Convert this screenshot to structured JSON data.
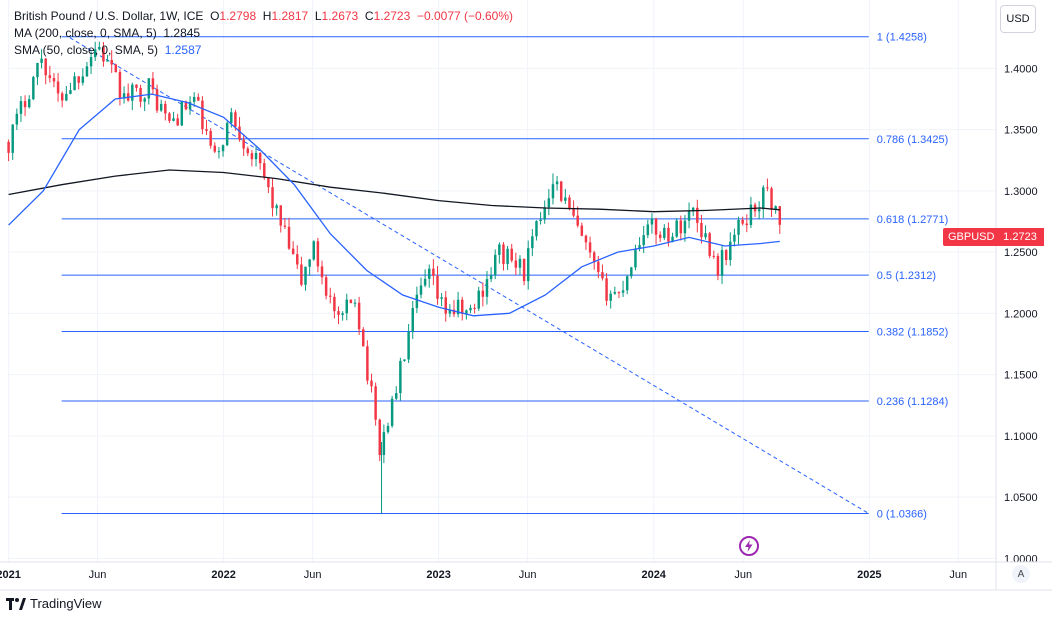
{
  "legend": {
    "title": "British Pound / U.S. Dollar, 1W, ICE",
    "o_label": "O",
    "o_value": "1.2798",
    "h_label": "H",
    "h_value": "1.2817",
    "l_label": "L",
    "l_value": "1.2673",
    "c_label": "C",
    "c_value": "1.2723",
    "change": "−0.0077 (−0.60%)",
    "ma200_label": "MA (200, close, 0, SMA, 5)",
    "ma200_value": "1.2845",
    "sma50_label": "SMA (50, close, 0, SMA, 5)",
    "sma50_value": "1.2587"
  },
  "currency_button": "USD",
  "symbol_tag": "GBPUSD",
  "last_price": "1.2723",
  "auto_scale_button": "A",
  "brand": "TradingView",
  "colors": {
    "up": "#089981",
    "down": "#f23645",
    "fib": "#2962ff",
    "ma200": "#131722",
    "sma50": "#2962ff",
    "grid": "#f0f3fa",
    "text": "#131722"
  },
  "chart_data": {
    "type": "candlestick",
    "instrument": "GBPUSD",
    "interval": "1W",
    "y_ticks": [
      "1.0000",
      "1.0500",
      "1.1000",
      "1.1500",
      "1.2000",
      "1.2500",
      "1.3000",
      "1.3500",
      "1.4000"
    ],
    "ylim": [
      0.997,
      1.4558
    ],
    "x_ticks": [
      {
        "label": "2021",
        "date": "2021-01-01"
      },
      {
        "label": "Jun",
        "date": "2021-06-01"
      },
      {
        "label": "2022",
        "date": "2022-01-01"
      },
      {
        "label": "Jun",
        "date": "2022-06-01"
      },
      {
        "label": "2023",
        "date": "2023-01-01"
      },
      {
        "label": "Jun",
        "date": "2023-06-01"
      },
      {
        "label": "2024",
        "date": "2024-01-01"
      },
      {
        "label": "Jun",
        "date": "2024-06-01"
      },
      {
        "label": "2025",
        "date": "2025-01-01"
      },
      {
        "label": "Jun",
        "date": "2025-06-01"
      }
    ],
    "xlim": [
      "2020-12-31",
      "2025-08-04"
    ],
    "fibonacci": {
      "start": "2021-04-01",
      "end": "2024-12-31",
      "levels": [
        {
          "label": "1 (1.4258)",
          "value": 1.4258
        },
        {
          "label": "0.786 (1.3425)",
          "value": 1.3425
        },
        {
          "label": "0.618 (1.2771)",
          "value": 1.2771
        },
        {
          "label": "0.5 (1.2312)",
          "value": 1.2312
        },
        {
          "label": "0.382 (1.1852)",
          "value": 1.1852
        },
        {
          "label": "0.236 (1.1284)",
          "value": 1.1284
        },
        {
          "label": "0 (1.0366)",
          "value": 1.0366
        }
      ]
    },
    "trendline": {
      "from": [
        "2021-04-15",
        1.425
      ],
      "to": [
        "2024-12-31",
        1.0366
      ],
      "style": "dashed"
    },
    "ma200": [
      [
        "2021-01-01",
        1.297
      ],
      [
        "2021-04-01",
        1.305
      ],
      [
        "2021-07-01",
        1.312
      ],
      [
        "2021-10-01",
        1.317
      ],
      [
        "2022-01-01",
        1.315
      ],
      [
        "2022-04-01",
        1.31
      ],
      [
        "2022-07-01",
        1.303
      ],
      [
        "2022-10-01",
        1.298
      ],
      [
        "2023-01-01",
        1.292
      ],
      [
        "2023-04-01",
        1.288
      ],
      [
        "2023-07-01",
        1.286
      ],
      [
        "2023-10-01",
        1.285
      ],
      [
        "2024-01-01",
        1.283
      ],
      [
        "2024-04-01",
        1.284
      ],
      [
        "2024-07-01",
        1.286
      ],
      [
        "2024-08-02",
        1.2845
      ]
    ],
    "sma50": [
      [
        "2021-01-01",
        1.272
      ],
      [
        "2021-03-01",
        1.3
      ],
      [
        "2021-05-01",
        1.35
      ],
      [
        "2021-07-01",
        1.375
      ],
      [
        "2021-09-01",
        1.379
      ],
      [
        "2021-11-01",
        1.372
      ],
      [
        "2022-01-01",
        1.36
      ],
      [
        "2022-03-01",
        1.335
      ],
      [
        "2022-05-01",
        1.305
      ],
      [
        "2022-07-01",
        1.265
      ],
      [
        "2022-09-01",
        1.235
      ],
      [
        "2022-11-01",
        1.215
      ],
      [
        "2023-01-01",
        1.205
      ],
      [
        "2023-03-01",
        1.198
      ],
      [
        "2023-05-01",
        1.2
      ],
      [
        "2023-07-01",
        1.215
      ],
      [
        "2023-09-01",
        1.238
      ],
      [
        "2023-11-01",
        1.25
      ],
      [
        "2024-01-01",
        1.255
      ],
      [
        "2024-03-01",
        1.262
      ],
      [
        "2024-05-01",
        1.255
      ],
      [
        "2024-07-01",
        1.257
      ],
      [
        "2024-08-02",
        1.2587
      ]
    ],
    "anchors": [
      [
        "2021-01-01",
        1.34
      ],
      [
        "2021-02-26",
        1.41
      ],
      [
        "2021-03-26",
        1.375
      ],
      [
        "2021-04-30",
        1.395
      ],
      [
        "2021-06-01",
        1.42
      ],
      [
        "2021-07-16",
        1.375
      ],
      [
        "2021-08-27",
        1.385
      ],
      [
        "2021-10-01",
        1.355
      ],
      [
        "2021-11-12",
        1.375
      ],
      [
        "2021-12-17",
        1.325
      ],
      [
        "2022-01-14",
        1.362
      ],
      [
        "2022-03-11",
        1.31
      ],
      [
        "2022-05-13",
        1.225
      ],
      [
        "2022-06-01",
        1.255
      ],
      [
        "2022-07-15",
        1.19
      ],
      [
        "2022-08-12",
        1.215
      ],
      [
        "2022-09-23",
        1.09
      ],
      [
        "2022-10-14",
        1.125
      ],
      [
        "2022-11-25",
        1.21
      ],
      [
        "2022-12-16",
        1.23
      ],
      [
        "2023-01-06",
        1.205
      ],
      [
        "2023-02-24",
        1.2
      ],
      [
        "2023-04-14",
        1.25
      ],
      [
        "2023-05-26",
        1.235
      ],
      [
        "2023-07-14",
        1.312
      ],
      [
        "2023-08-18",
        1.275
      ],
      [
        "2023-10-06",
        1.22
      ],
      [
        "2023-11-03",
        1.215
      ],
      [
        "2023-12-15",
        1.27
      ],
      [
        "2024-02-02",
        1.265
      ],
      [
        "2024-03-08",
        1.285
      ],
      [
        "2024-04-19",
        1.238
      ],
      [
        "2024-05-31",
        1.275
      ],
      [
        "2024-07-12",
        1.3
      ],
      [
        "2024-08-02",
        1.2723
      ]
    ]
  }
}
